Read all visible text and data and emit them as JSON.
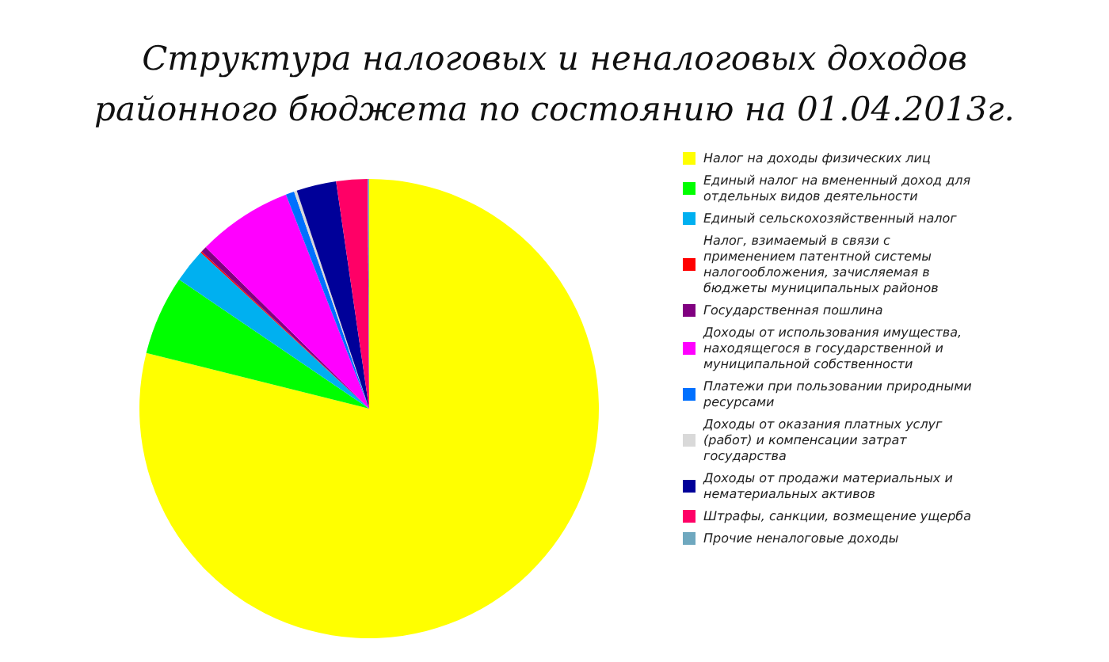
{
  "chart_data": {
    "type": "pie",
    "title": "Структура налоговых и неналоговых доходов\nрайонного бюджета по состоянию на 01.04.2013г.",
    "categories": [
      "Налог на доходы физических лиц",
      "Единый налог на вмененный доход для отдельных видов деятельности",
      "Единый сельскохозяйственный налог",
      "Налог, взимаемый в связи с применением патентной системы налогообложения, зачисляемая в бюджеты муниципальных районов",
      "Государственная пошлина",
      "Доходы от использования имущества, находящегося в государственной и муниципальной собственности",
      "Платежи при пользовании природными ресурсами",
      "Доходы от оказания платных услуг (работ) и компенсации затрат государства",
      "Доходы от продажи материальных и нематериальных активов",
      "Штрафы, санкции, возмещение ущерба",
      "Прочие неналоговые доходы"
    ],
    "values": [
      78.9,
      5.6,
      2.4,
      0.1,
      0.4,
      6.7,
      0.6,
      0.2,
      2.8,
      2.2,
      0.1
    ],
    "colors": [
      "#ffff00",
      "#00ff00",
      "#00b0f0",
      "#ff0000",
      "#800080",
      "#ff00ff",
      "#0070ff",
      "#d9d9d9",
      "#000099",
      "#ff0066",
      "#6fa8bf"
    ],
    "legend": "right"
  }
}
